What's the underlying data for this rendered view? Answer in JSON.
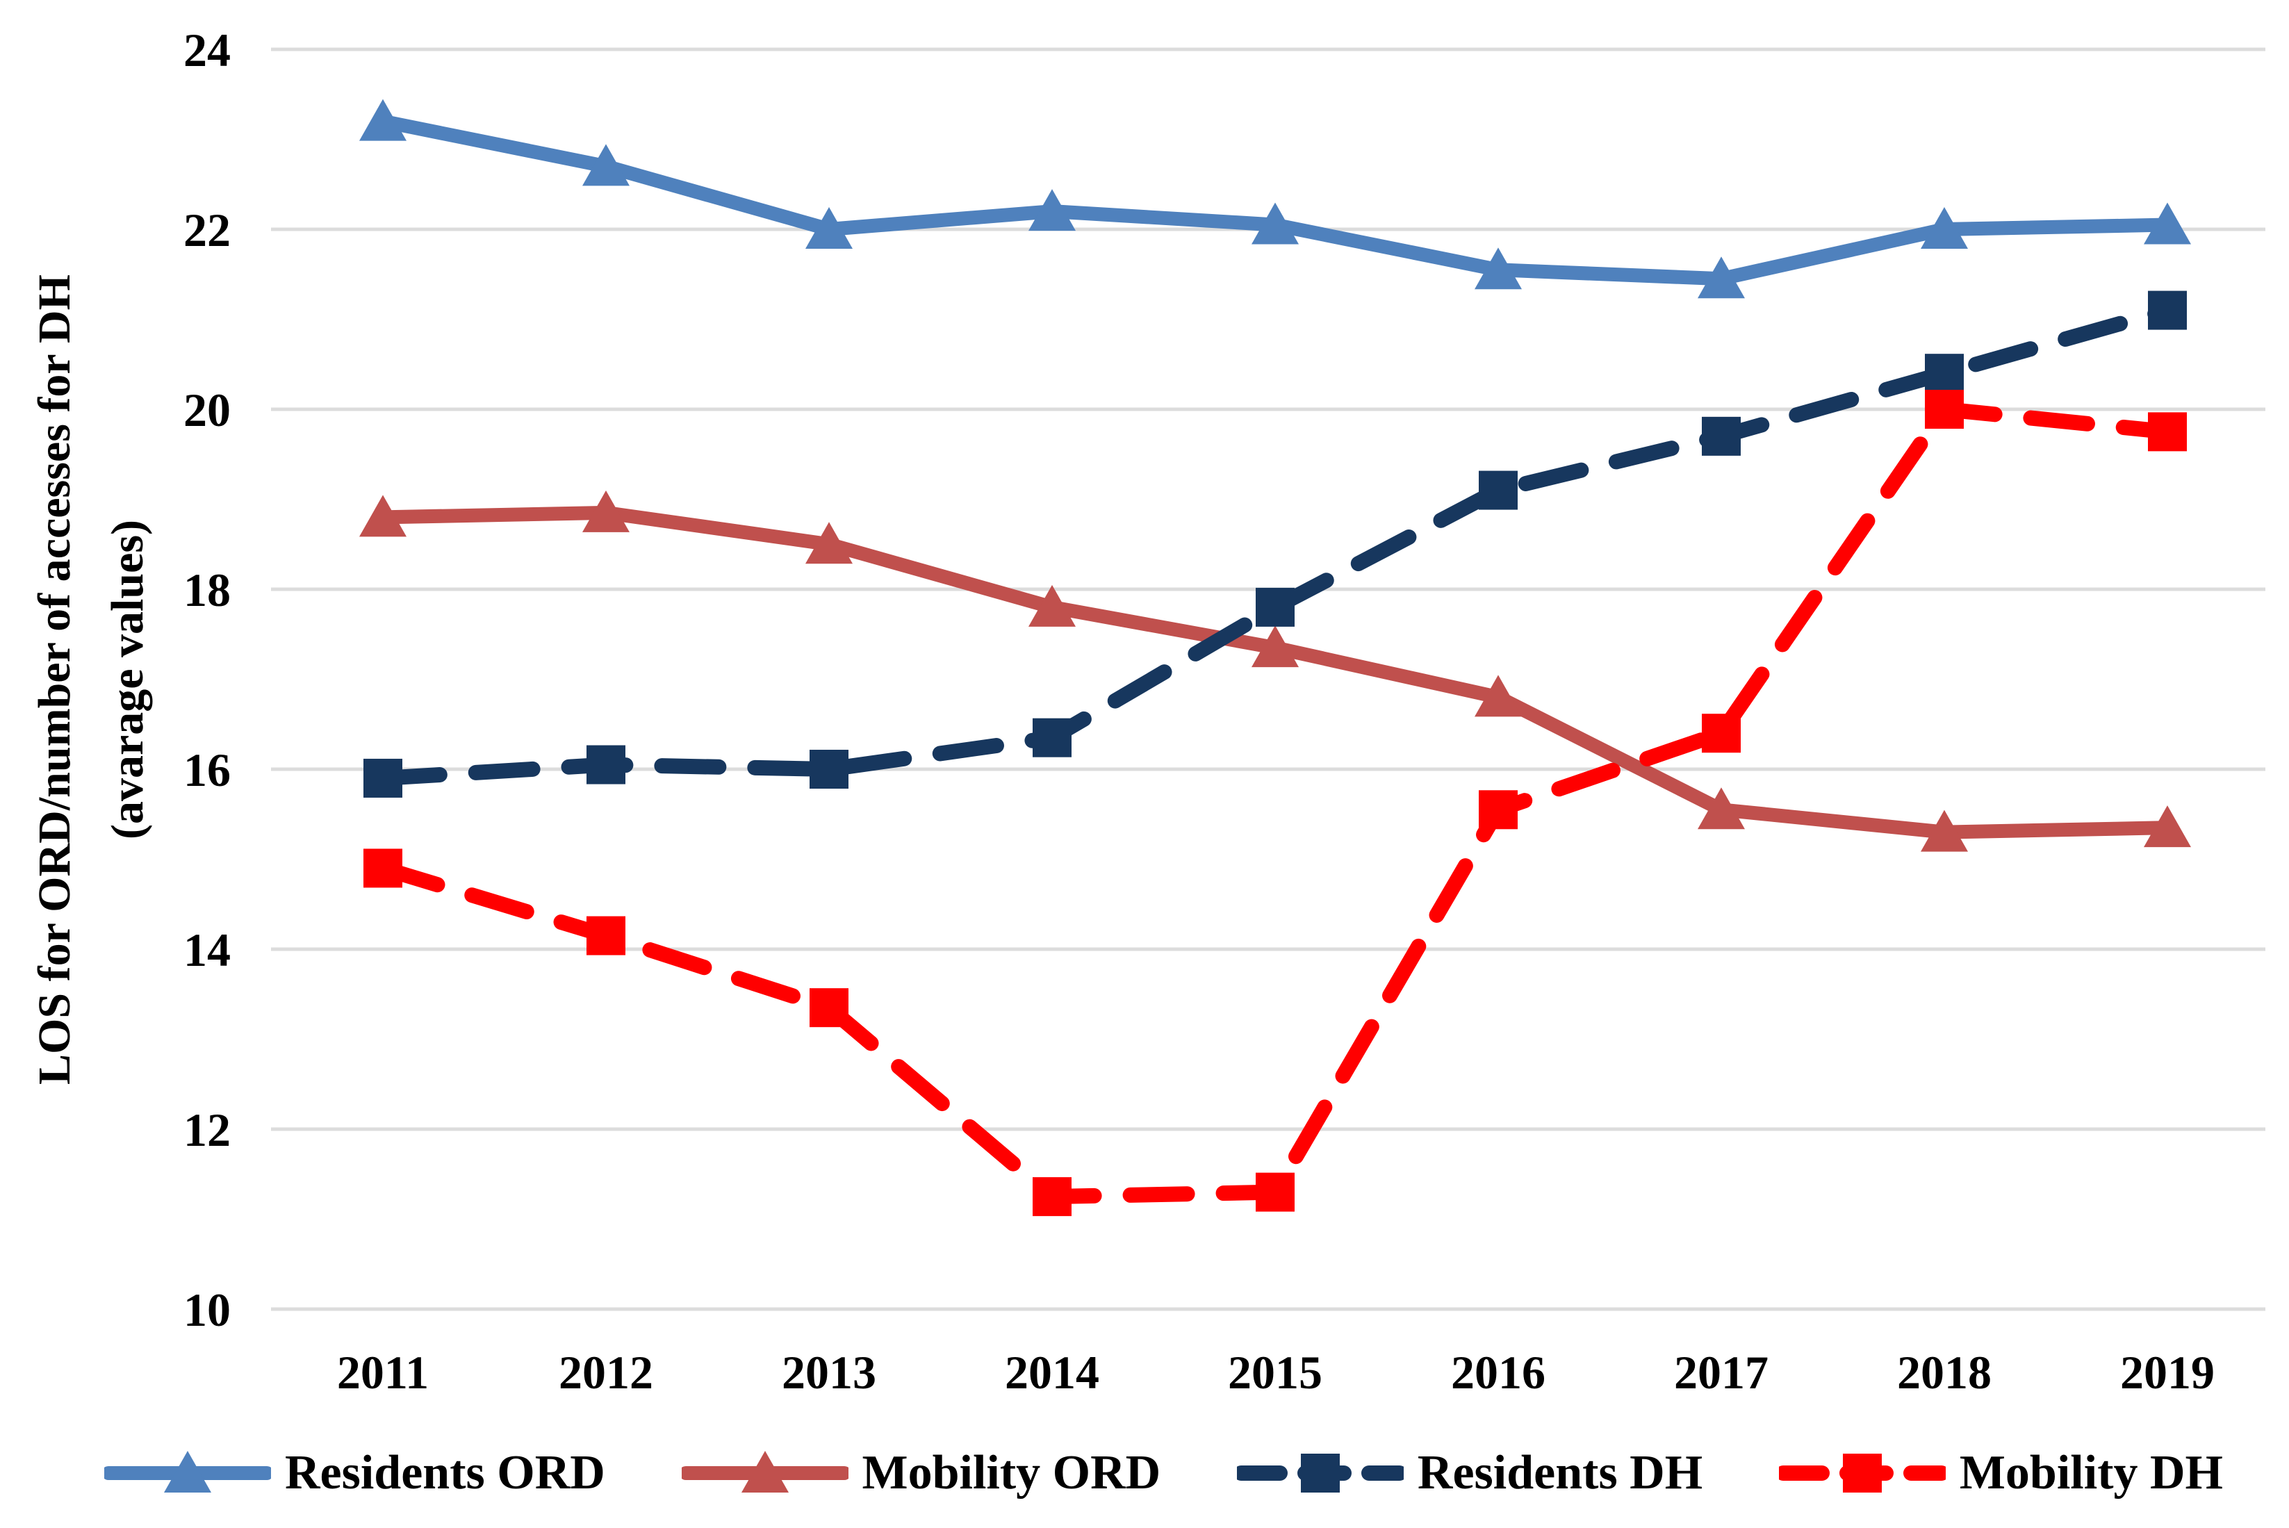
{
  "figure": {
    "background": "#FFFFFF"
  },
  "chart_data": {
    "type": "line",
    "title": "",
    "ylabel_line1": "LOS for ORD/number of accesses for DH",
    "ylabel_line2": "(avarage values)",
    "xlabel": "",
    "categories": [
      "2011",
      "2012",
      "2013",
      "2014",
      "2015",
      "2016",
      "2017",
      "2018",
      "2019"
    ],
    "yticks": [
      "10",
      "12",
      "14",
      "16",
      "18",
      "20",
      "22",
      "24"
    ],
    "ylim": [
      10,
      24
    ],
    "ytick_step": 2,
    "grid": "horizontal",
    "gridline_color": "#DCDCDC",
    "text_color": "#000000",
    "legend_position": "bottom",
    "series": [
      {
        "name": "Residents ORD",
        "color": "#4F81BD",
        "line": "solid",
        "marker": "triangle",
        "values": [
          23.2,
          22.7,
          22.0,
          22.2,
          22.05,
          21.55,
          21.45,
          22.0,
          22.05
        ]
      },
      {
        "name": "Mobility ORD",
        "color": "#C0504D",
        "line": "solid",
        "marker": "triangle",
        "values": [
          18.8,
          18.85,
          18.5,
          17.8,
          17.35,
          16.8,
          15.55,
          15.3,
          15.35
        ]
      },
      {
        "name": "Residents DH",
        "color": "#17375E",
        "line": "dashed",
        "marker": "square",
        "values": [
          15.9,
          16.05,
          16.0,
          16.35,
          17.8,
          19.1,
          19.7,
          20.4,
          21.1
        ]
      },
      {
        "name": "Mobility DH",
        "color": "#FF0000",
        "line": "dashed",
        "marker": "square",
        "values": [
          14.9,
          14.15,
          13.35,
          11.25,
          11.3,
          15.55,
          16.4,
          20.0,
          19.75
        ]
      }
    ]
  }
}
